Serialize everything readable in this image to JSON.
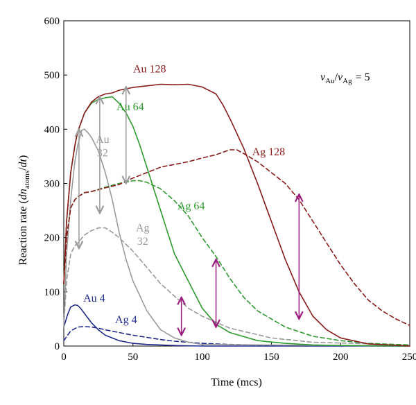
{
  "chart_data": {
    "type": "line",
    "xlabel": "Time (mcs)",
    "ylabel": "Reaction rate (dn_atoms/dt)",
    "ylabel_parts": {
      "pre": "Reaction rate (",
      "dn": "dn",
      "sub": "atoms",
      "slash": "/",
      "dt": "dt",
      "post": ")"
    },
    "xlim": [
      0,
      250
    ],
    "ylim": [
      0,
      600
    ],
    "x_ticks": [
      "0",
      "50",
      "100",
      "150",
      "200",
      "250"
    ],
    "y_ticks": [
      "0",
      "100",
      "200",
      "300",
      "400",
      "500",
      "600"
    ],
    "annotation": {
      "nu": "ν",
      "au": "Au",
      "slash": "/",
      "ag": "Ag",
      "eq": "= 5"
    },
    "colors": {
      "n4": "#1f2a8c",
      "n32": "#9a9a9a",
      "n64": "#2e9a2e",
      "n128": "#8b1a1a",
      "arrow": "#9b1b7e"
    },
    "series": [
      {
        "name": "Au 4",
        "style": "solid",
        "color_key": "n4",
        "x": [
          0,
          3,
          5,
          8,
          10,
          12,
          15,
          20,
          25,
          30,
          40,
          50,
          60,
          70,
          80,
          100,
          250
        ],
        "y": [
          35,
          60,
          72,
          76,
          75,
          70,
          60,
          43,
          30,
          20,
          10,
          5,
          3,
          2,
          1,
          0,
          0
        ]
      },
      {
        "name": "Ag 4",
        "style": "dashed",
        "color_key": "n4",
        "x": [
          0,
          5,
          10,
          15,
          20,
          25,
          30,
          40,
          50,
          60,
          70,
          80,
          100,
          120,
          150,
          250
        ],
        "y": [
          10,
          28,
          35,
          36,
          35,
          33,
          30,
          25,
          20,
          16,
          12,
          9,
          5,
          3,
          1,
          0
        ]
      },
      {
        "name": "Au 32",
        "style": "solid",
        "color_key": "n32",
        "x": [
          0,
          2,
          5,
          8,
          10,
          13,
          15,
          18,
          20,
          25,
          30,
          35,
          40,
          45,
          50,
          60,
          70,
          80,
          90,
          100,
          250
        ],
        "y": [
          35,
          170,
          270,
          340,
          370,
          398,
          400,
          392,
          385,
          360,
          320,
          270,
          210,
          160,
          120,
          65,
          30,
          15,
          7,
          3,
          0
        ]
      },
      {
        "name": "Ag 32",
        "style": "dashed",
        "color_key": "n32",
        "x": [
          0,
          2,
          5,
          8,
          10,
          15,
          20,
          25,
          30,
          35,
          40,
          50,
          60,
          70,
          80,
          90,
          100,
          120,
          150,
          180,
          250
        ],
        "y": [
          35,
          120,
          170,
          185,
          190,
          205,
          213,
          218,
          218,
          210,
          200,
          175,
          145,
          115,
          92,
          70,
          55,
          33,
          15,
          7,
          2
        ]
      },
      {
        "name": "Au 64",
        "style": "solid",
        "color_key": "n64",
        "x": [
          0,
          2,
          5,
          8,
          10,
          15,
          20,
          25,
          30,
          35,
          40,
          45,
          50,
          55,
          60,
          70,
          80,
          90,
          100,
          110,
          120,
          140,
          160,
          180,
          200,
          250
        ],
        "y": [
          115,
          230,
          320,
          370,
          395,
          430,
          448,
          455,
          458,
          460,
          448,
          430,
          405,
          370,
          330,
          250,
          170,
          120,
          70,
          40,
          25,
          10,
          5,
          2,
          1,
          0
        ]
      },
      {
        "name": "Ag 64",
        "style": "dashed",
        "color_key": "n64",
        "x": [
          0,
          2,
          5,
          8,
          10,
          15,
          20,
          30,
          40,
          50,
          55,
          60,
          70,
          80,
          90,
          100,
          110,
          120,
          130,
          140,
          160,
          180,
          200,
          220,
          250
        ],
        "y": [
          115,
          200,
          255,
          270,
          275,
          283,
          285,
          293,
          300,
          305,
          305,
          302,
          290,
          268,
          240,
          200,
          165,
          125,
          90,
          65,
          35,
          18,
          10,
          5,
          2
        ]
      },
      {
        "name": "Au 128",
        "style": "solid",
        "color_key": "n128",
        "x": [
          0,
          2,
          5,
          8,
          10,
          15,
          20,
          25,
          30,
          35,
          40,
          50,
          60,
          70,
          80,
          90,
          100,
          110,
          115,
          120,
          130,
          140,
          150,
          160,
          170,
          180,
          190,
          200,
          220,
          250
        ],
        "y": [
          115,
          230,
          320,
          370,
          395,
          430,
          450,
          460,
          465,
          467,
          472,
          477,
          480,
          483,
          482,
          483,
          478,
          465,
          445,
          420,
          365,
          300,
          230,
          160,
          100,
          55,
          30,
          15,
          4,
          0
        ]
      },
      {
        "name": "Ag 128",
        "style": "dashed",
        "color_key": "n128",
        "x": [
          0,
          2,
          5,
          8,
          10,
          15,
          20,
          30,
          40,
          50,
          60,
          70,
          80,
          90,
          100,
          110,
          120,
          125,
          130,
          140,
          150,
          160,
          170,
          180,
          190,
          200,
          210,
          220,
          230,
          240,
          250
        ],
        "y": [
          115,
          200,
          255,
          270,
          275,
          283,
          285,
          292,
          298,
          310,
          320,
          330,
          335,
          340,
          347,
          353,
          362,
          362,
          355,
          340,
          320,
          300,
          270,
          230,
          190,
          150,
          115,
          85,
          65,
          50,
          38
        ]
      }
    ],
    "gap_arrows": [
      {
        "group": "grey",
        "x": 11,
        "y_top": 400,
        "y_bottom": 180
      },
      {
        "group": "grey",
        "x": 26,
        "y_top": 460,
        "y_bottom": 245
      },
      {
        "group": "grey",
        "x": 45,
        "y_top": 478,
        "y_bottom": 300
      },
      {
        "group": "purple",
        "x": 85,
        "y_top": 90,
        "y_bottom": 20
      },
      {
        "group": "purple",
        "x": 110,
        "y_top": 160,
        "y_bottom": 35
      },
      {
        "group": "purple",
        "x": 170,
        "y_top": 280,
        "y_bottom": 50
      }
    ],
    "labels": [
      {
        "text": "Au 128",
        "color_key": "n128",
        "x": 62,
        "y": 505
      },
      {
        "text": "Au 64",
        "color_key": "n64",
        "x": 48,
        "y": 435
      },
      {
        "text": "Au",
        "color_key": "n32",
        "x": 28,
        "y": 375
      },
      {
        "text": "32",
        "color_key": "n32",
        "x": 28,
        "y": 350
      },
      {
        "text": "Ag 128",
        "color_key": "n128",
        "x": 148,
        "y": 352
      },
      {
        "text": "Ag 64",
        "color_key": "n64",
        "x": 92,
        "y": 252
      },
      {
        "text": "Ag",
        "color_key": "n32",
        "x": 57,
        "y": 212
      },
      {
        "text": "32",
        "color_key": "n32",
        "x": 57,
        "y": 187
      },
      {
        "text": "Au 4",
        "color_key": "n4",
        "x": 22,
        "y": 82
      },
      {
        "text": "Ag 4",
        "color_key": "n4",
        "x": 45,
        "y": 42
      }
    ]
  }
}
